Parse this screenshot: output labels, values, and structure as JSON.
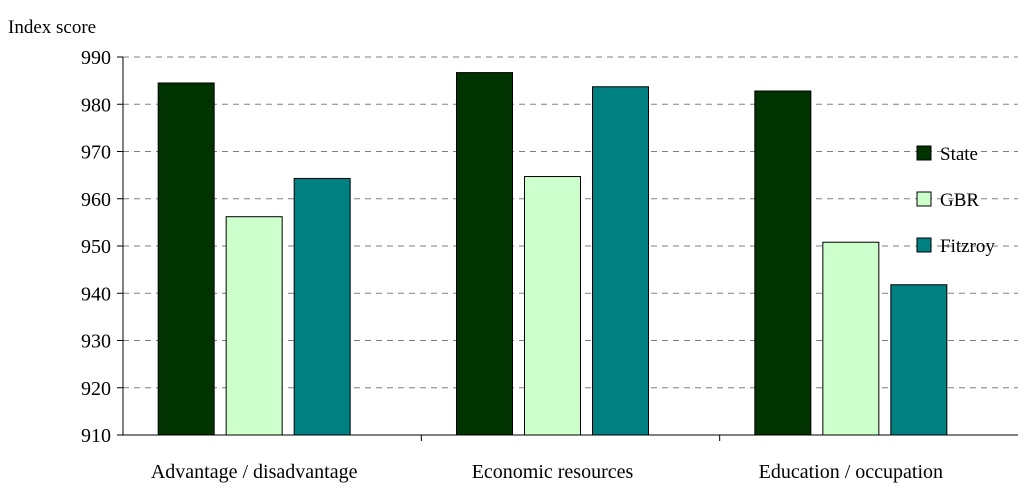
{
  "chart_data": {
    "type": "bar",
    "ylabel": "Index score",
    "xlabel": "",
    "ylim": [
      910,
      990
    ],
    "yticks": [
      910,
      920,
      930,
      940,
      950,
      960,
      970,
      980,
      990
    ],
    "categories": [
      "Advantage / disadvantage",
      "Economic resources",
      "Education / occupation"
    ],
    "series": [
      {
        "name": "State",
        "values": [
          984.5,
          986.7,
          982.8
        ],
        "color": "#003300"
      },
      {
        "name": "GBR",
        "values": [
          956.2,
          964.7,
          950.8
        ],
        "color": "#ccffcc"
      },
      {
        "name": "Fitzroy",
        "values": [
          964.3,
          983.7,
          941.8
        ],
        "color": "#008080"
      }
    ],
    "grid": "horizontal-dashed",
    "legend_position": "right"
  }
}
